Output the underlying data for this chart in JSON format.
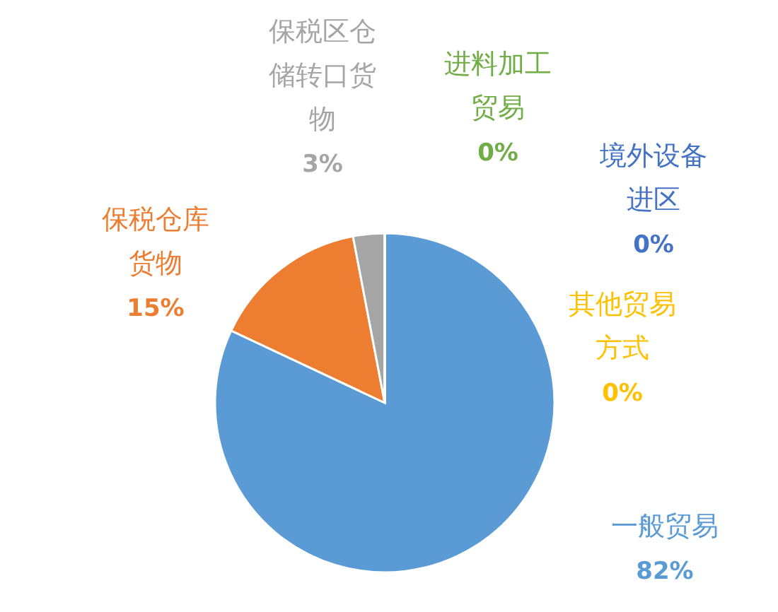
{
  "chart_data": {
    "type": "pie",
    "categories": [
      "一般贸易",
      "保税仓库货物",
      "保税区仓储转口货物",
      "进料加工贸易",
      "境外设备进区",
      "其他贸易方式"
    ],
    "values": [
      82,
      15,
      3,
      0,
      0,
      0
    ],
    "value_labels": [
      "82%",
      "15%",
      "3%",
      "0%",
      "0%",
      "0%"
    ],
    "colors": [
      "#5b9bd5",
      "#ed7d31",
      "#a5a5a5",
      "#70ad47",
      "#4472c4",
      "#ffc000"
    ]
  }
}
